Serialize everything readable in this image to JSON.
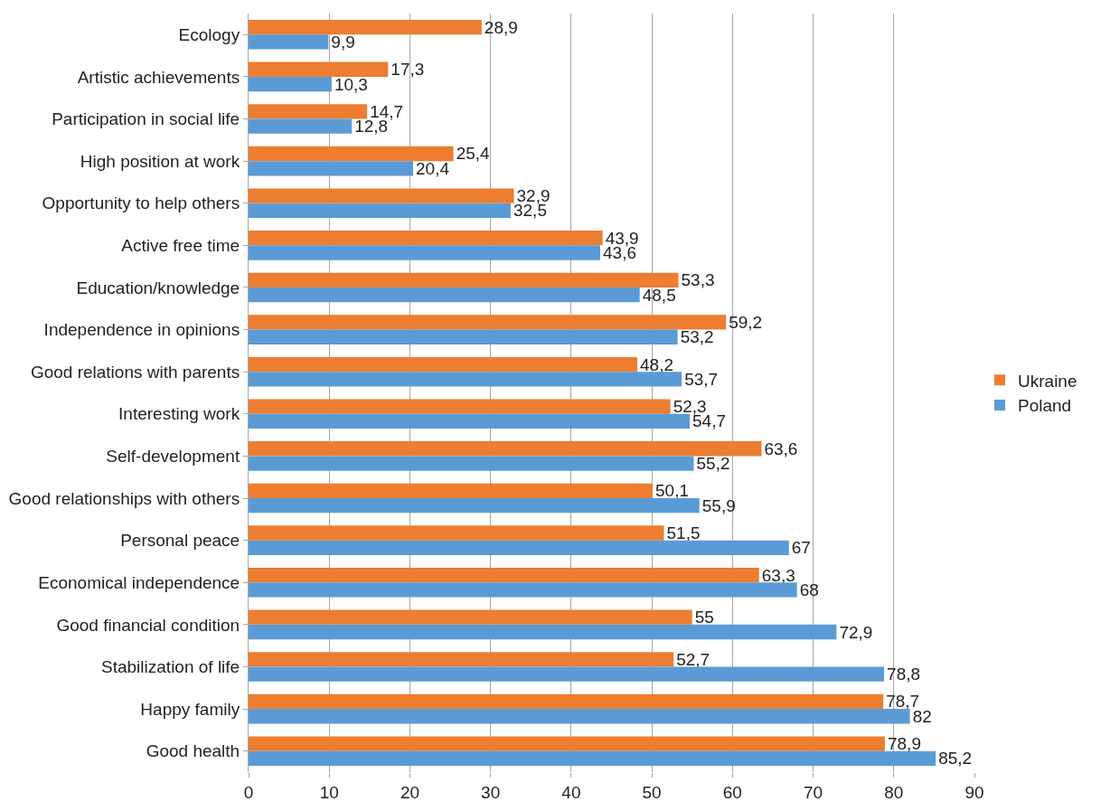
{
  "chart_data": {
    "type": "bar",
    "orientation": "horizontal",
    "categories": [
      "Ecology",
      "Artistic achievements",
      "Participation in social life",
      "High position at work",
      "Opportunity to help others",
      "Active free time",
      "Education/knowledge",
      "Independence in opinions",
      "Good relations with parents",
      "Interesting work",
      "Self-development",
      "Good relationships with others",
      "Personal peace",
      "Economical independence",
      "Good financial condition",
      "Stabilization of life",
      "Happy family",
      "Good health"
    ],
    "series": [
      {
        "name": "Ukraine",
        "color": "#ed7d31",
        "values": [
          28.9,
          17.3,
          14.7,
          25.4,
          32.9,
          43.9,
          53.3,
          59.2,
          48.2,
          52.3,
          63.6,
          50.1,
          51.5,
          63.3,
          55,
          52.7,
          78.7,
          78.9
        ],
        "value_labels": [
          "28,9",
          "17,3",
          "14,7",
          "25,4",
          "32,9",
          "43,9",
          "53,3",
          "59,2",
          "48,2",
          "52,3",
          "63,6",
          "50,1",
          "51,5",
          "63,3",
          "55",
          "52,7",
          "78,7",
          "78,9"
        ]
      },
      {
        "name": "Poland",
        "color": "#5b9bd5",
        "values": [
          9.9,
          10.3,
          12.8,
          20.4,
          32.5,
          43.6,
          48.5,
          53.2,
          53.7,
          54.7,
          55.2,
          55.9,
          67,
          68,
          72.9,
          78.8,
          82,
          85.2
        ],
        "value_labels": [
          "9,9",
          "10,3",
          "12,8",
          "20,4",
          "32,5",
          "43,6",
          "48,5",
          "53,2",
          "53,7",
          "54,7",
          "55,2",
          "55,9",
          "67",
          "68",
          "72,9",
          "78,8",
          "82",
          "85,2"
        ]
      }
    ],
    "xlim": [
      0,
      90
    ],
    "xticks": [
      0,
      10,
      20,
      30,
      40,
      50,
      60,
      70,
      80,
      90
    ],
    "grid": "x",
    "legend": "right"
  }
}
